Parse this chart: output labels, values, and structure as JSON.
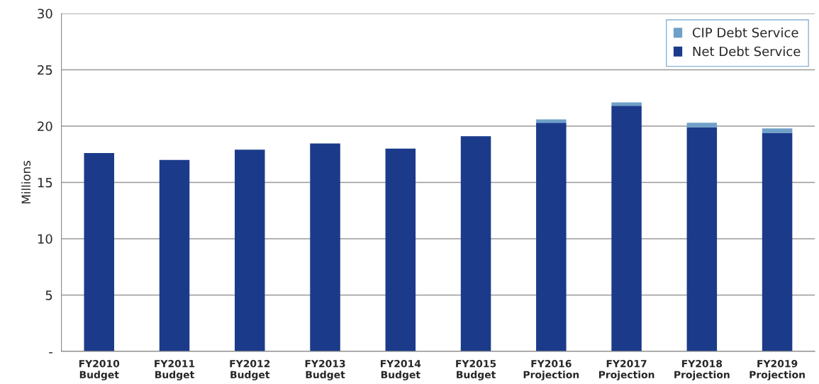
{
  "chart_data": {
    "type": "bar",
    "stacked": true,
    "ylabel": "Millions",
    "categories": [
      "FY2010\nBudget",
      "FY2011\nBudget",
      "FY2012\nBudget",
      "FY2013\nBudget",
      "FY2014\nBudget",
      "FY2015\nBudget",
      "FY2016\nProjection",
      "FY2017\nProjection",
      "FY2018\nProjection",
      "FY2019\nProjection"
    ],
    "series": [
      {
        "name": "Net Debt Service",
        "color": "#1b3a8a",
        "values": [
          17.6,
          17.0,
          17.9,
          18.45,
          18.0,
          19.1,
          20.3,
          21.8,
          19.9,
          19.4
        ]
      },
      {
        "name": "CIP Debt Service",
        "color": "#6fa0c8",
        "values": [
          0,
          0,
          0,
          0,
          0,
          0,
          0.3,
          0.3,
          0.4,
          0.4
        ]
      }
    ],
    "ylim": [
      0,
      30
    ],
    "yticks": [
      {
        "value": 0,
        "label": "-"
      },
      5,
      10,
      15,
      20,
      25,
      30
    ],
    "grid": "y",
    "legend": "top right"
  }
}
